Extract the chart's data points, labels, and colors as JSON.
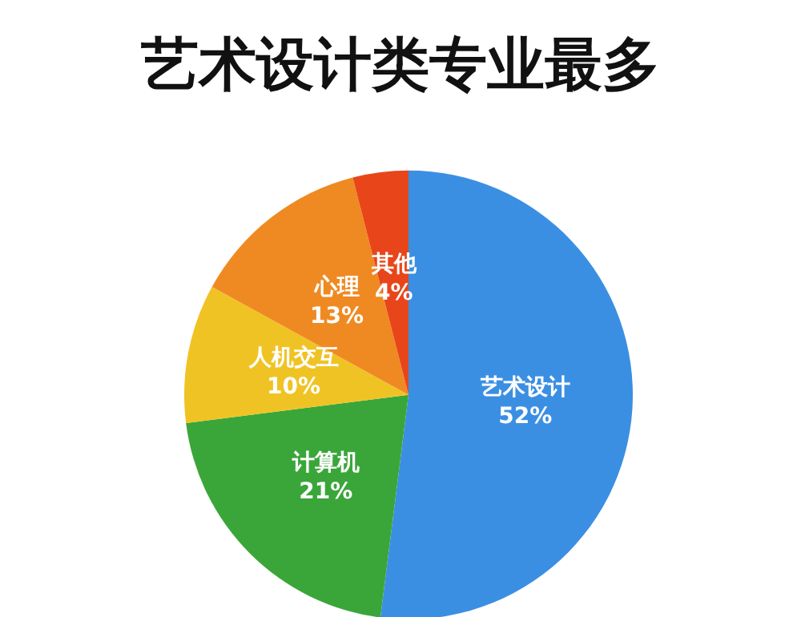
{
  "chart_data": {
    "type": "pie",
    "title": "艺术设计类专业最多",
    "categories": [
      "艺术设计",
      "计算机",
      "人机交互",
      "心理",
      "其他"
    ],
    "values": [
      52,
      21,
      10,
      13,
      4
    ],
    "value_labels": [
      "52%",
      "21%",
      "10%",
      "13%",
      "4%"
    ],
    "colors": [
      "#3b8fe3",
      "#3aa63a",
      "#f0c324",
      "#ef8a22",
      "#e8461a"
    ],
    "legend": false
  }
}
